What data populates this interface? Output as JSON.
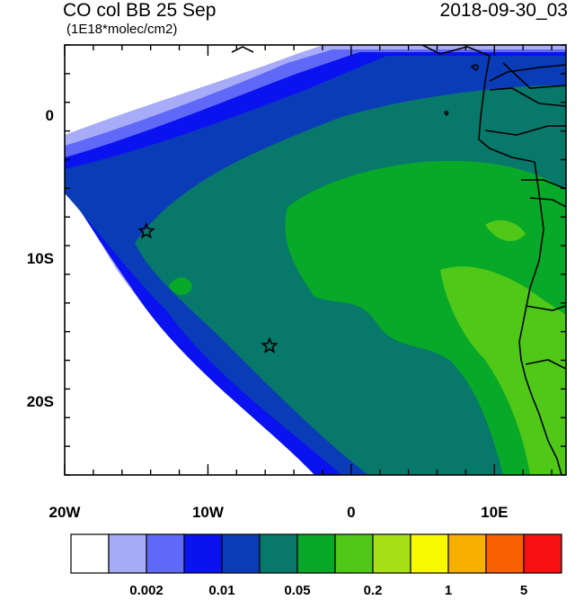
{
  "header": {
    "title": "CO col BB 25 Sep",
    "datetime": "2018-09-30_03",
    "units": "(1E18*molec/cm2)"
  },
  "axes": {
    "x_labels": [
      {
        "text": "20W",
        "lon": -20
      },
      {
        "text": "10W",
        "lon": -10
      },
      {
        "text": "0",
        "lon": 0
      },
      {
        "text": "10E",
        "lon": 10
      }
    ],
    "y_labels": [
      {
        "text": "0",
        "lat": 0
      },
      {
        "text": "10S",
        "lat": -10
      },
      {
        "text": "20S",
        "lat": -20
      }
    ],
    "lon_range": [
      -20,
      15
    ],
    "lat_range": [
      -25,
      5
    ]
  },
  "markers": [
    {
      "name": "star-marker",
      "lon": -14.3,
      "lat": -8.0
    },
    {
      "name": "star-marker",
      "lon": -5.7,
      "lat": -16.0
    }
  ],
  "colorbar": {
    "colors": [
      "#ffffff",
      "#a8acf8",
      "#6068f8",
      "#0a12f0",
      "#0a3cb8",
      "#08786a",
      "#08a828",
      "#50c818",
      "#a8e018",
      "#f8f800",
      "#f8b000",
      "#f86000",
      "#f81010"
    ],
    "labels": [
      {
        "text": "0.002",
        "after_box": 2
      },
      {
        "text": "0.01",
        "after_box": 4
      },
      {
        "text": "0.05",
        "after_box": 6
      },
      {
        "text": "0.2",
        "after_box": 8
      },
      {
        "text": "1",
        "after_box": 10
      },
      {
        "text": "5",
        "after_box": 12
      }
    ]
  }
}
